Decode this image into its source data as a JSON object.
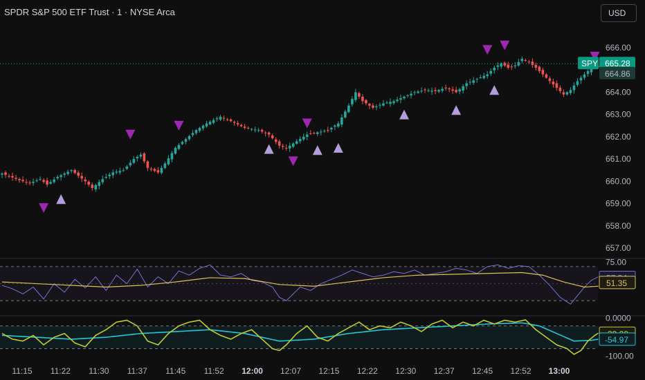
{
  "header": {
    "title": "SPDR S&P 500 ETF Trust · 1 · NYSE Arca",
    "currency_label": "USD"
  },
  "colors": {
    "background": "#0f0f0f",
    "up_candle": "#26a69a",
    "down_candle": "#ef5350",
    "marker_up": "#b39ddb",
    "marker_down": "#9c27b0",
    "rsi_line": "#7e6fd0",
    "rsi_ma": "#e2c154",
    "osc_fast": "#c0ca33",
    "osc_slow": "#26c6da"
  },
  "chart_data": [
    {
      "type": "candlestick",
      "symbol": "SPY",
      "ylim": [
        656.6,
        666.9
      ],
      "y_ticks": [
        "666.00",
        "665.00",
        "664.00",
        "663.00",
        "662.00",
        "661.00",
        "660.00",
        "659.00",
        "658.00",
        "657.00"
      ],
      "last_price_label": "SPY",
      "last_price": "665.28",
      "secondary_price": "664.86",
      "x_times": [
        "11:15",
        "11:22",
        "11:30",
        "11:37",
        "11:45",
        "11:52",
        "12:00",
        "12:07",
        "12:15",
        "12:22",
        "12:30",
        "12:37",
        "12:45",
        "12:52",
        "13:00"
      ],
      "close_anchors": [
        [
          0,
          660.35
        ],
        [
          5,
          660.05
        ],
        [
          8,
          659.92
        ],
        [
          11,
          660.1
        ],
        [
          13,
          659.85
        ],
        [
          16,
          660.2
        ],
        [
          20,
          660.5
        ],
        [
          24,
          660.0
        ],
        [
          26,
          659.7
        ],
        [
          29,
          660.1
        ],
        [
          32,
          660.4
        ],
        [
          35,
          660.5
        ],
        [
          38,
          661.0
        ],
        [
          40,
          661.2
        ],
        [
          42,
          660.6
        ],
        [
          45,
          660.4
        ],
        [
          47,
          660.8
        ],
        [
          50,
          661.5
        ],
        [
          53,
          661.9
        ],
        [
          56,
          662.3
        ],
        [
          59,
          662.6
        ],
        [
          63,
          662.9
        ],
        [
          66,
          662.7
        ],
        [
          70,
          662.4
        ],
        [
          74,
          662.3
        ],
        [
          77,
          662.1
        ],
        [
          80,
          661.6
        ],
        [
          82,
          661.5
        ],
        [
          85,
          661.8
        ],
        [
          88,
          662.1
        ],
        [
          91,
          662.2
        ],
        [
          94,
          662.3
        ],
        [
          97,
          662.6
        ],
        [
          100,
          663.4
        ],
        [
          102,
          664.0
        ],
        [
          104,
          663.6
        ],
        [
          107,
          663.3
        ],
        [
          110,
          663.5
        ],
        [
          113,
          663.6
        ],
        [
          116,
          663.8
        ],
        [
          119,
          664.0
        ],
        [
          122,
          664.1
        ],
        [
          125,
          664.05
        ],
        [
          128,
          664.2
        ],
        [
          131,
          664.0
        ],
        [
          134,
          664.4
        ],
        [
          137,
          664.6
        ],
        [
          140,
          664.8
        ],
        [
          142,
          665.1
        ],
        [
          144,
          665.3
        ],
        [
          146,
          665.1
        ],
        [
          148,
          665.2
        ],
        [
          150,
          665.5
        ],
        [
          152,
          665.35
        ],
        [
          154,
          665.1
        ],
        [
          156,
          664.8
        ],
        [
          158,
          664.5
        ],
        [
          160,
          664.2
        ],
        [
          162,
          663.9
        ],
        [
          164,
          664.1
        ],
        [
          166,
          664.5
        ],
        [
          168,
          664.8
        ],
        [
          170,
          665.1
        ]
      ],
      "markers_up": [
        {
          "index": 17,
          "price": 659.2
        },
        {
          "index": 77,
          "price": 661.45
        },
        {
          "index": 91,
          "price": 661.4
        },
        {
          "index": 97,
          "price": 661.5
        },
        {
          "index": 116,
          "price": 663.0
        },
        {
          "index": 131,
          "price": 663.2
        },
        {
          "index": 142,
          "price": 664.1
        }
      ],
      "markers_down": [
        {
          "index": 12,
          "price": 658.8
        },
        {
          "index": 37,
          "price": 662.1
        },
        {
          "index": 51,
          "price": 662.5
        },
        {
          "index": 84,
          "price": 660.9
        },
        {
          "index": 88,
          "price": 662.6
        },
        {
          "index": 140,
          "price": 665.9
        },
        {
          "index": 145,
          "price": 666.1
        },
        {
          "index": 171,
          "price": 665.6
        }
      ]
    },
    {
      "type": "line",
      "name": "rsi_panel",
      "ylim": [
        14,
        78
      ],
      "y_ticks": [
        "75.00"
      ],
      "bands": [
        70,
        30
      ],
      "rsi_anchors": [
        [
          0,
          48
        ],
        [
          3,
          44
        ],
        [
          6,
          38
        ],
        [
          9,
          46
        ],
        [
          12,
          32
        ],
        [
          15,
          50
        ],
        [
          18,
          40
        ],
        [
          21,
          55
        ],
        [
          24,
          45
        ],
        [
          27,
          58
        ],
        [
          30,
          42
        ],
        [
          33,
          60
        ],
        [
          36,
          50
        ],
        [
          39,
          67
        ],
        [
          42,
          46
        ],
        [
          45,
          58
        ],
        [
          48,
          50
        ],
        [
          51,
          65
        ],
        [
          54,
          60
        ],
        [
          57,
          68
        ],
        [
          60,
          72
        ],
        [
          63,
          60
        ],
        [
          66,
          58
        ],
        [
          69,
          62
        ],
        [
          72,
          54
        ],
        [
          75,
          52
        ],
        [
          78,
          46
        ],
        [
          80,
          34
        ],
        [
          82,
          30
        ],
        [
          84,
          38
        ],
        [
          86,
          46
        ],
        [
          89,
          42
        ],
        [
          92,
          50
        ],
        [
          95,
          55
        ],
        [
          98,
          60
        ],
        [
          101,
          66
        ],
        [
          104,
          62
        ],
        [
          107,
          58
        ],
        [
          110,
          60
        ],
        [
          113,
          64
        ],
        [
          116,
          62
        ],
        [
          119,
          66
        ],
        [
          122,
          60
        ],
        [
          125,
          62
        ],
        [
          128,
          64
        ],
        [
          131,
          68
        ],
        [
          134,
          66
        ],
        [
          137,
          62
        ],
        [
          140,
          70
        ],
        [
          143,
          72
        ],
        [
          146,
          68
        ],
        [
          149,
          71
        ],
        [
          152,
          70
        ],
        [
          155,
          60
        ],
        [
          158,
          48
        ],
        [
          161,
          34
        ],
        [
          164,
          26
        ],
        [
          166,
          36
        ],
        [
          168,
          46
        ],
        [
          170,
          54
        ],
        [
          172,
          58
        ]
      ],
      "rsi_ma_anchors": [
        [
          0,
          52
        ],
        [
          20,
          48
        ],
        [
          30,
          46
        ],
        [
          40,
          48
        ],
        [
          50,
          52
        ],
        [
          60,
          57
        ],
        [
          70,
          56
        ],
        [
          80,
          49
        ],
        [
          90,
          47
        ],
        [
          100,
          52
        ],
        [
          110,
          57
        ],
        [
          120,
          60
        ],
        [
          130,
          61
        ],
        [
          140,
          62
        ],
        [
          150,
          63
        ],
        [
          156,
          60
        ],
        [
          162,
          52
        ],
        [
          168,
          46
        ],
        [
          172,
          47
        ]
      ],
      "rsi_value": "57.34",
      "rsi_ma_value": "51.35"
    },
    {
      "type": "line",
      "name": "oscillator_panel",
      "ylim": [
        -108,
        5
      ],
      "y_ticks": [
        "0.0000",
        "-100.00"
      ],
      "bands": [
        -20,
        -80
      ],
      "fast_anchors": [
        [
          0,
          -40
        ],
        [
          3,
          -55
        ],
        [
          6,
          -60
        ],
        [
          9,
          -45
        ],
        [
          12,
          -70
        ],
        [
          15,
          -50
        ],
        [
          18,
          -40
        ],
        [
          21,
          -65
        ],
        [
          24,
          -75
        ],
        [
          27,
          -45
        ],
        [
          30,
          -30
        ],
        [
          33,
          -10
        ],
        [
          36,
          -5
        ],
        [
          39,
          -20
        ],
        [
          42,
          -60
        ],
        [
          45,
          -70
        ],
        [
          48,
          -40
        ],
        [
          51,
          -20
        ],
        [
          54,
          -10
        ],
        [
          57,
          -5
        ],
        [
          60,
          -30
        ],
        [
          63,
          -45
        ],
        [
          66,
          -55
        ],
        [
          69,
          -40
        ],
        [
          72,
          -30
        ],
        [
          75,
          -55
        ],
        [
          78,
          -80
        ],
        [
          80,
          -85
        ],
        [
          82,
          -70
        ],
        [
          85,
          -40
        ],
        [
          88,
          -20
        ],
        [
          91,
          -50
        ],
        [
          94,
          -60
        ],
        [
          97,
          -40
        ],
        [
          100,
          -25
        ],
        [
          103,
          -10
        ],
        [
          106,
          -30
        ],
        [
          109,
          -20
        ],
        [
          112,
          -25
        ],
        [
          115,
          -10
        ],
        [
          118,
          -20
        ],
        [
          121,
          -35
        ],
        [
          124,
          -15
        ],
        [
          127,
          -5
        ],
        [
          130,
          -25
        ],
        [
          133,
          -10
        ],
        [
          136,
          -20
        ],
        [
          139,
          -5
        ],
        [
          142,
          -15
        ],
        [
          145,
          -5
        ],
        [
          148,
          -10
        ],
        [
          151,
          -4
        ],
        [
          154,
          -30
        ],
        [
          157,
          -50
        ],
        [
          160,
          -70
        ],
        [
          163,
          -80
        ],
        [
          165,
          -95
        ],
        [
          167,
          -85
        ],
        [
          169,
          -60
        ],
        [
          171,
          -45
        ],
        [
          172,
          -39
        ]
      ],
      "slow_anchors": [
        [
          0,
          -45
        ],
        [
          20,
          -55
        ],
        [
          30,
          -50
        ],
        [
          40,
          -40
        ],
        [
          50,
          -35
        ],
        [
          60,
          -30
        ],
        [
          70,
          -40
        ],
        [
          80,
          -60
        ],
        [
          90,
          -55
        ],
        [
          100,
          -40
        ],
        [
          110,
          -30
        ],
        [
          120,
          -25
        ],
        [
          130,
          -20
        ],
        [
          140,
          -15
        ],
        [
          150,
          -12
        ],
        [
          155,
          -20
        ],
        [
          160,
          -40
        ],
        [
          165,
          -60
        ],
        [
          170,
          -58
        ],
        [
          172,
          -55
        ]
      ],
      "fast_value": "-39.20",
      "slow_value": "-54.97"
    }
  ]
}
